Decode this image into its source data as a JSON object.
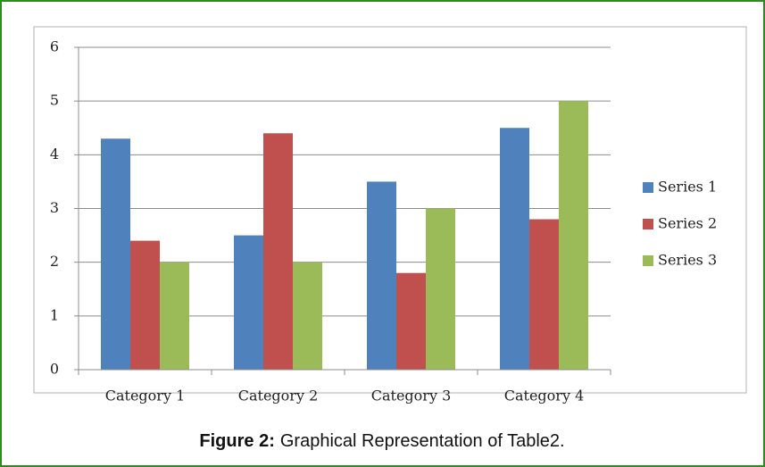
{
  "chart_data": {
    "type": "bar",
    "categories": [
      "Category 1",
      "Category 2",
      "Category 3",
      "Category 4"
    ],
    "series": [
      {
        "name": "Series 1",
        "color": "#4f81bd",
        "values": [
          4.3,
          2.5,
          3.5,
          4.5
        ]
      },
      {
        "name": "Series 2",
        "color": "#c0504d",
        "values": [
          2.4,
          4.4,
          1.8,
          2.8
        ]
      },
      {
        "name": "Series 3",
        "color": "#9bbb59",
        "values": [
          2,
          2,
          3,
          5
        ]
      }
    ],
    "ylim": [
      0,
      6
    ],
    "yticks": [
      0,
      1,
      2,
      3,
      4,
      5,
      6
    ],
    "grid": true,
    "legend": "right"
  },
  "caption": {
    "label": "Figure 2:",
    "text": "Graphical Representation of Table2."
  }
}
